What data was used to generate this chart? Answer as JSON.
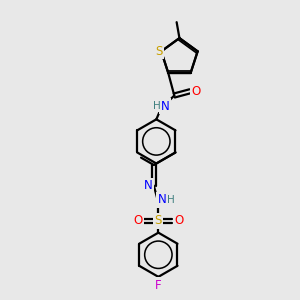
{
  "bg_color": "#e8e8e8",
  "atom_colors": {
    "S": "#c8a000",
    "O": "#ff0000",
    "N": "#0000ff",
    "F": "#cc00cc",
    "C": "#000000",
    "H": "#408080"
  },
  "bond_color": "#000000",
  "bond_width": 1.6
}
